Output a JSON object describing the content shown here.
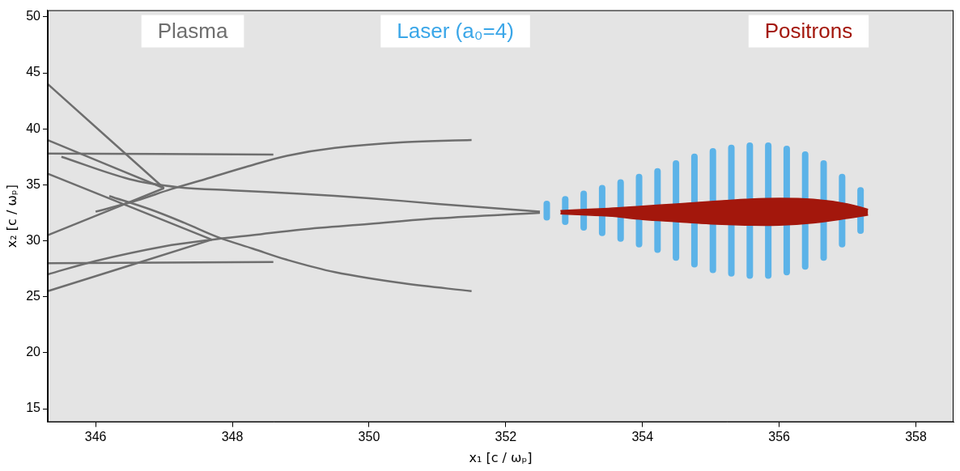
{
  "chart_data": {
    "type": "scatter",
    "x_label": "x₁ [c / ωₚ]",
    "y_label": "x₂ [c / ωₚ]",
    "xlim": [
      345.3,
      358.55
    ],
    "ylim": [
      13.8,
      50.6
    ],
    "xticks": [
      346,
      348,
      350,
      352,
      354,
      356,
      358
    ],
    "yticks": [
      15,
      20,
      25,
      30,
      35,
      40,
      45,
      50
    ],
    "grid": false,
    "legend": "top",
    "series": [
      {
        "name": "Plasma",
        "type": "line",
        "color": "#6e6e6e",
        "curves": [
          {
            "x": [
              351.5,
              350.5,
              349.5,
              348.8,
              348.2,
              347.6,
              347.1,
              346.6,
              346.0
            ],
            "values": [
              39.0,
              38.8,
              38.3,
              37.6,
              36.6,
              35.5,
              34.6,
              33.6,
              32.6
            ]
          },
          {
            "x": [
              351.5,
              350.5,
              349.5,
              348.8,
              348.3,
              347.8,
              347.3,
              346.8,
              346.2
            ],
            "values": [
              25.5,
              26.2,
              27.2,
              28.3,
              29.3,
              30.3,
              31.6,
              32.8,
              34.0
            ]
          },
          {
            "x": [
              352.5,
              351.0,
              350.0,
              349.0,
              348.0,
              347.2,
              346.5,
              345.5
            ],
            "values": [
              32.6,
              33.3,
              33.8,
              34.2,
              34.5,
              34.8,
              35.5,
              37.5
            ]
          },
          {
            "x": [
              352.5,
              351.0,
              350.0,
              349.0,
              348.3,
              347.7,
              347.0,
              346.0,
              345.3
            ],
            "values": [
              32.5,
              32.0,
              31.5,
              31.0,
              30.5,
              30.1,
              29.5,
              28.2,
              27.0
            ]
          },
          {
            "x": [
              347.0,
              345.3
            ],
            "values": [
              34.7,
              39.0
            ]
          },
          {
            "x": [
              347.0,
              345.3
            ],
            "values": [
              34.7,
              30.5
            ]
          },
          {
            "x": [
              347.7,
              345.3
            ],
            "values": [
              30.1,
              25.5
            ]
          },
          {
            "x": [
              347.7,
              345.3
            ],
            "values": [
              30.1,
              36.0
            ]
          },
          {
            "x": [
              347.0,
              345.3
            ],
            "values": [
              34.7,
              44.0
            ]
          },
          {
            "x": [
              348.6,
              345.3
            ],
            "values": [
              37.7,
              37.8
            ]
          },
          {
            "x": [
              348.6,
              345.3
            ],
            "values": [
              28.1,
              28.0
            ]
          }
        ]
      },
      {
        "name": "Laser (a₀=4)",
        "type": "stripes",
        "color": "#3aa6e8",
        "x": [
          352.6,
          352.87,
          353.14,
          353.41,
          353.68,
          353.95,
          354.22,
          354.49,
          354.76,
          355.03,
          355.3,
          355.57,
          355.84,
          356.11,
          356.38,
          356.65,
          356.92,
          357.19
        ],
        "low": [
          32.1,
          31.7,
          31.2,
          30.7,
          30.2,
          29.7,
          29.2,
          28.5,
          27.9,
          27.4,
          27.1,
          26.9,
          26.9,
          27.2,
          27.7,
          28.5,
          29.7,
          30.9
        ],
        "high": [
          33.3,
          33.7,
          34.2,
          34.7,
          35.2,
          35.7,
          36.2,
          36.9,
          37.5,
          38.0,
          38.3,
          38.5,
          38.5,
          38.2,
          37.7,
          36.9,
          35.7,
          34.5
        ]
      },
      {
        "name": "Positrons",
        "type": "area",
        "color": "#a3170c",
        "x": [
          352.8,
          353.5,
          354.0,
          354.5,
          355.0,
          355.5,
          356.0,
          356.5,
          357.0,
          357.3
        ],
        "low": [
          32.4,
          32.2,
          31.9,
          31.7,
          31.5,
          31.4,
          31.4,
          31.6,
          32.0,
          32.3
        ],
        "high": [
          32.7,
          32.9,
          33.1,
          33.3,
          33.5,
          33.7,
          33.8,
          33.7,
          33.3,
          32.8
        ]
      }
    ]
  }
}
